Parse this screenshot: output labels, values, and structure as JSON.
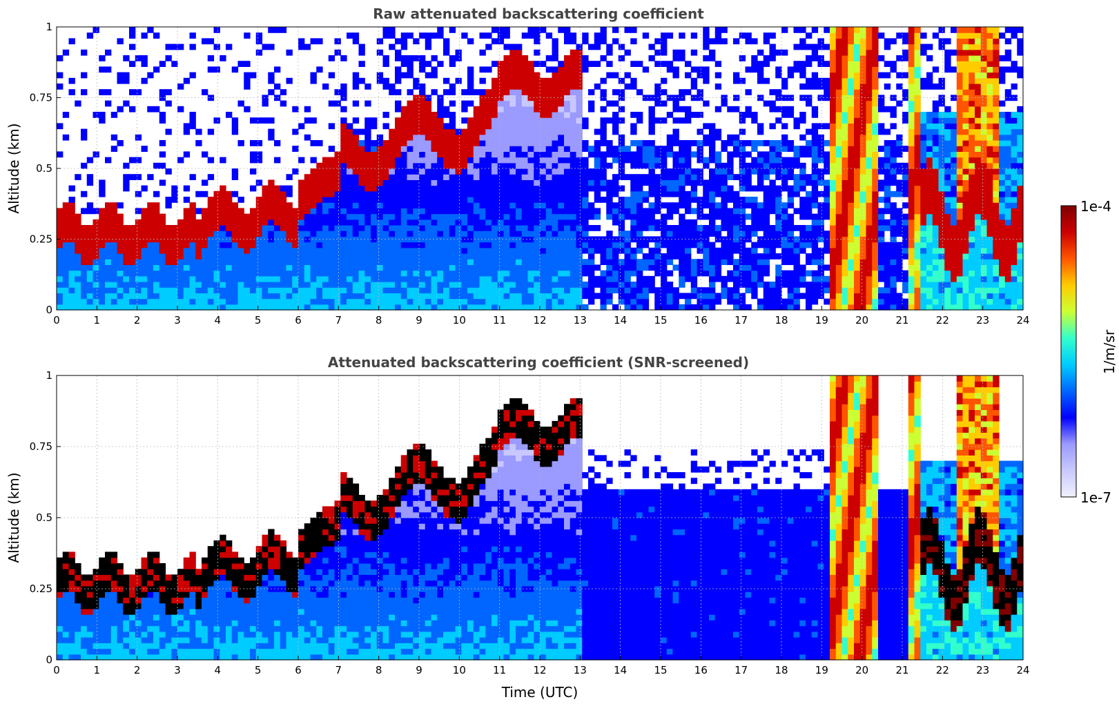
{
  "chart_data": [
    {
      "type": "heatmap",
      "title": "Raw attenuated backscattering coefficient",
      "xlabel": "",
      "ylabel": "Altitude (km)",
      "xlim": [
        0,
        24
      ],
      "ylim": [
        0,
        1
      ],
      "xticks": [
        "0",
        "1",
        "2",
        "3",
        "4",
        "5",
        "6",
        "7",
        "8",
        "9",
        "10",
        "11",
        "12",
        "13",
        "14",
        "15",
        "16",
        "17",
        "18",
        "19",
        "20",
        "21",
        "22",
        "23",
        "24"
      ],
      "yticks": [
        "0",
        "0.25",
        "0.5",
        "0.75",
        "1"
      ],
      "grid": true,
      "variant": "raw"
    },
    {
      "type": "heatmap",
      "title": "Attenuated backscattering coefficient (SNR-screened)",
      "xlabel": "Time (UTC)",
      "ylabel": "Altitude (km)",
      "xlim": [
        0,
        24
      ],
      "ylim": [
        0,
        1
      ],
      "xticks": [
        "0",
        "1",
        "2",
        "3",
        "4",
        "5",
        "6",
        "7",
        "8",
        "9",
        "10",
        "11",
        "12",
        "13",
        "14",
        "15",
        "16",
        "17",
        "18",
        "19",
        "20",
        "21",
        "22",
        "23",
        "24"
      ],
      "yticks": [
        "0",
        "0.25",
        "0.5",
        "0.75",
        "1"
      ],
      "grid": true,
      "variant": "screened"
    }
  ],
  "colorbar": {
    "label": "1/m/sr",
    "max_label": "1e-4",
    "min_label": "1e-7",
    "scale": "log",
    "range": [
      1e-07,
      0.0001
    ],
    "colors": [
      "#f0f0ff",
      "#c8c8ff",
      "#9a9aff",
      "#0000ff",
      "#0066ff",
      "#00ccff",
      "#33ffcc",
      "#ccff33",
      "#ffcc00",
      "#ff5500",
      "#cc0000",
      "#7f0000"
    ]
  }
}
